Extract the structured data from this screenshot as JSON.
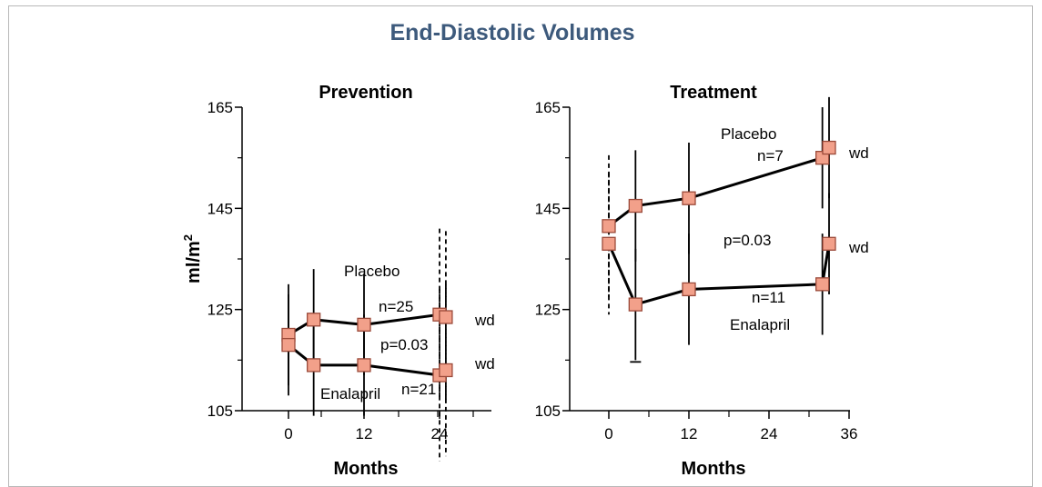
{
  "title": "End-Diastolic Volumes",
  "colors": {
    "title": "#3d5a7c",
    "marker_fill": "#f2a08a",
    "marker_stroke": "#9b4a3a",
    "line": "#000000"
  },
  "chart_data": [
    {
      "type": "line",
      "title": "Prevention",
      "ylabel": "ml/m²",
      "xlabel": "Months",
      "ylim": [
        105,
        165
      ],
      "yticks": [
        "165",
        "145",
        "125",
        "105"
      ],
      "xticks": [
        "0",
        "12",
        "24"
      ],
      "series": [
        {
          "name": "Placebo",
          "x": [
            0,
            4,
            12,
            24,
            25
          ],
          "y": [
            120,
            123,
            122,
            124,
            123.5
          ]
        },
        {
          "name": "Enalapril",
          "x": [
            0,
            4,
            12,
            24,
            25
          ],
          "y": [
            118,
            114,
            114,
            112,
            113
          ]
        }
      ],
      "annotations": [
        "Placebo",
        "n=25",
        "p=0.03",
        "wd",
        "wd",
        "Enalapril",
        "n=21"
      ]
    },
    {
      "type": "line",
      "title": "Treatment",
      "xlabel": "Months",
      "ylim": [
        105,
        165
      ],
      "yticks": [
        "165",
        "145",
        "125",
        "105"
      ],
      "xticks": [
        "0",
        "12",
        "24",
        "36"
      ],
      "series": [
        {
          "name": "Placebo",
          "x": [
            0,
            4,
            12,
            32,
            33
          ],
          "y": [
            141.5,
            145.5,
            147,
            155,
            157
          ]
        },
        {
          "name": "Enalapril",
          "x": [
            0,
            4,
            12,
            32,
            33
          ],
          "y": [
            138,
            126,
            129,
            130,
            138
          ]
        }
      ],
      "annotations": [
        "Placebo",
        "n=7",
        "wd",
        "p=0.03",
        "wd",
        "n=11",
        "Enalapril"
      ]
    }
  ]
}
